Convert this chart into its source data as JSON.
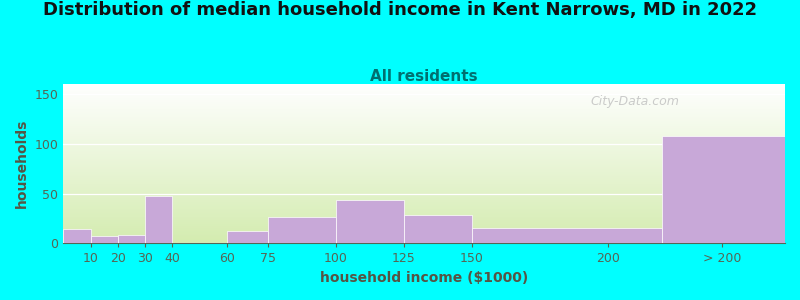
{
  "title": "Distribution of median household income in Kent Narrows, MD in 2022",
  "subtitle": "All residents",
  "xlabel": "household income ($1000)",
  "ylabel": "households",
  "background_color": "#00FFFF",
  "plot_bg_top": "#ffffff",
  "plot_bg_bottom": "#d4ecb0",
  "bar_color": "#c8a8d8",
  "categories": [
    "10",
    "20",
    "30",
    "40",
    "60",
    "75",
    "100",
    "125",
    "150",
    "200",
    "> 200"
  ],
  "values": [
    14,
    7,
    8,
    48,
    0,
    12,
    27,
    44,
    29,
    15,
    108
  ],
  "bar_lefts": [
    0,
    10,
    20,
    30,
    40,
    60,
    75,
    100,
    125,
    150,
    220
  ],
  "bar_rights": [
    10,
    20,
    30,
    40,
    60,
    75,
    100,
    125,
    150,
    220,
    265
  ],
  "tick_positions": [
    10,
    20,
    30,
    40,
    60,
    75,
    100,
    125,
    150,
    200,
    242
  ],
  "xlim": [
    0,
    265
  ],
  "ylim": [
    0,
    160
  ],
  "yticks": [
    0,
    50,
    100,
    150
  ],
  "title_fontsize": 13,
  "subtitle_fontsize": 11,
  "label_fontsize": 10,
  "tick_fontsize": 9,
  "title_color": "#111111",
  "subtitle_color": "#007070",
  "axis_label_color": "#555544",
  "tick_color": "#556655",
  "watermark_text": "City-Data.com",
  "watermark_color": "#bbbbbb"
}
